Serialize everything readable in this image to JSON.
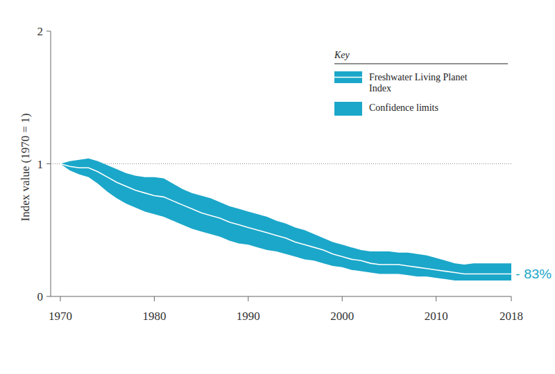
{
  "chart_data": {
    "type": "line",
    "y_label": "Index value (1970 = 1)",
    "legend_title": "Key",
    "legend": "top-right",
    "x": [
      1970,
      1971,
      1972,
      1973,
      1974,
      1975,
      1976,
      1977,
      1978,
      1979,
      1980,
      1981,
      1982,
      1983,
      1984,
      1985,
      1986,
      1987,
      1988,
      1989,
      1990,
      1991,
      1992,
      1993,
      1994,
      1995,
      1996,
      1997,
      1998,
      1999,
      2000,
      2001,
      2002,
      2003,
      2004,
      2005,
      2006,
      2007,
      2008,
      2009,
      2010,
      2011,
      2012,
      2013,
      2014,
      2015,
      2016,
      2017,
      2018
    ],
    "xlim": [
      1970,
      2018
    ],
    "xticks": [
      1970,
      1980,
      1990,
      2000,
      2010,
      2018
    ],
    "ylim": [
      0,
      2
    ],
    "yticks": [
      0,
      1,
      2
    ],
    "reference_lines": [
      1
    ],
    "series": [
      {
        "name": "Freshwater Living Planet Index",
        "color": "#ffffff",
        "values": [
          1.0,
          0.98,
          0.97,
          0.97,
          0.94,
          0.9,
          0.86,
          0.83,
          0.8,
          0.78,
          0.76,
          0.75,
          0.72,
          0.69,
          0.66,
          0.63,
          0.61,
          0.59,
          0.56,
          0.54,
          0.52,
          0.5,
          0.48,
          0.46,
          0.44,
          0.41,
          0.39,
          0.37,
          0.35,
          0.32,
          0.3,
          0.28,
          0.27,
          0.25,
          0.24,
          0.24,
          0.24,
          0.23,
          0.22,
          0.21,
          0.2,
          0.19,
          0.18,
          0.17,
          0.17,
          0.17,
          0.17,
          0.17,
          0.17
        ]
      },
      {
        "name": "Confidence limits",
        "type": "area",
        "color": "#1ba7c9",
        "upper": [
          1.0,
          1.02,
          1.03,
          1.04,
          1.02,
          0.99,
          0.96,
          0.93,
          0.91,
          0.9,
          0.9,
          0.89,
          0.85,
          0.81,
          0.78,
          0.76,
          0.74,
          0.71,
          0.68,
          0.66,
          0.64,
          0.62,
          0.6,
          0.57,
          0.55,
          0.52,
          0.5,
          0.47,
          0.44,
          0.41,
          0.39,
          0.37,
          0.35,
          0.34,
          0.34,
          0.34,
          0.33,
          0.33,
          0.32,
          0.31,
          0.29,
          0.27,
          0.25,
          0.24,
          0.25,
          0.25,
          0.25,
          0.25,
          0.25
        ],
        "lower": [
          1.0,
          0.95,
          0.92,
          0.9,
          0.85,
          0.79,
          0.74,
          0.7,
          0.67,
          0.64,
          0.62,
          0.6,
          0.57,
          0.54,
          0.51,
          0.49,
          0.47,
          0.45,
          0.42,
          0.4,
          0.39,
          0.37,
          0.35,
          0.34,
          0.32,
          0.3,
          0.28,
          0.27,
          0.25,
          0.23,
          0.22,
          0.2,
          0.19,
          0.18,
          0.17,
          0.17,
          0.17,
          0.16,
          0.15,
          0.15,
          0.14,
          0.13,
          0.12,
          0.12,
          0.12,
          0.12,
          0.12,
          0.12,
          0.12
        ]
      }
    ],
    "annotations": [
      {
        "text": "- 83%"
      }
    ]
  }
}
